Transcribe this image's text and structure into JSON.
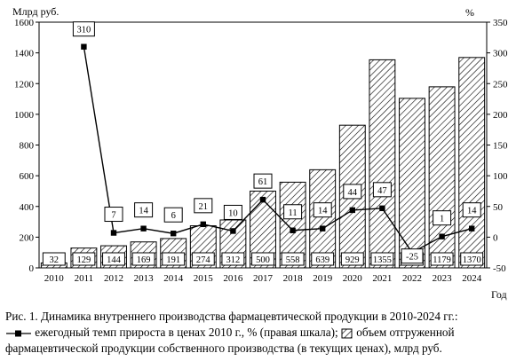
{
  "chart_data": {
    "type": "bar",
    "left_axis_title": "Млрд руб.",
    "right_axis_title": "%",
    "x_axis_title": "Год",
    "categories": [
      "2010",
      "2011",
      "2012",
      "2013",
      "2014",
      "2015",
      "2016",
      "2017",
      "2018",
      "2019",
      "2020",
      "2021",
      "2022",
      "2023",
      "2024"
    ],
    "bar_series": {
      "name": "объем отгруженной фармацевтической продукции собственного производства (в текущих ценах), млрд руб.",
      "values": [
        32,
        129,
        144,
        169,
        191,
        274,
        312,
        500,
        558,
        639,
        929,
        1355,
        1104,
        1179,
        1370
      ],
      "hatched": true
    },
    "line_series": {
      "name": "ежегодный темп прироста в ценах 2010 г., % (правая шкала)",
      "x": [
        "2011",
        "2012",
        "2013",
        "2014",
        "2015",
        "2016",
        "2017",
        "2018",
        "2019",
        "2020",
        "2021",
        "2022",
        "2023",
        "2024"
      ],
      "values": [
        310,
        7,
        14,
        6,
        21,
        10,
        61,
        11,
        14,
        44,
        47,
        -25,
        1,
        14
      ],
      "marker": "square"
    },
    "y_left": {
      "min": 0,
      "max": 1600,
      "ticks": [
        0,
        200,
        400,
        600,
        800,
        1000,
        1200,
        1400,
        1600
      ]
    },
    "y_right": {
      "min": -50,
      "max": 350,
      "ticks": [
        -50,
        0,
        50,
        100,
        150,
        200,
        250,
        300,
        350
      ]
    },
    "grid": false
  },
  "caption": {
    "line1": "Рис. 1. Динамика внутреннего производства фармацевтической продукции в 2010-2024 гг.:",
    "line2_a": "ежегодный темп прироста в ценах 2010 г., % (правая шкала);",
    "line2_b": "объем отгруженной",
    "line3": "фармацевтической продукции собственного производства (в текущих ценах), млрд руб."
  },
  "legend_icons": {
    "line_marker": "line-square-marker-icon",
    "bar_swatch": "hatched-swatch-icon"
  }
}
